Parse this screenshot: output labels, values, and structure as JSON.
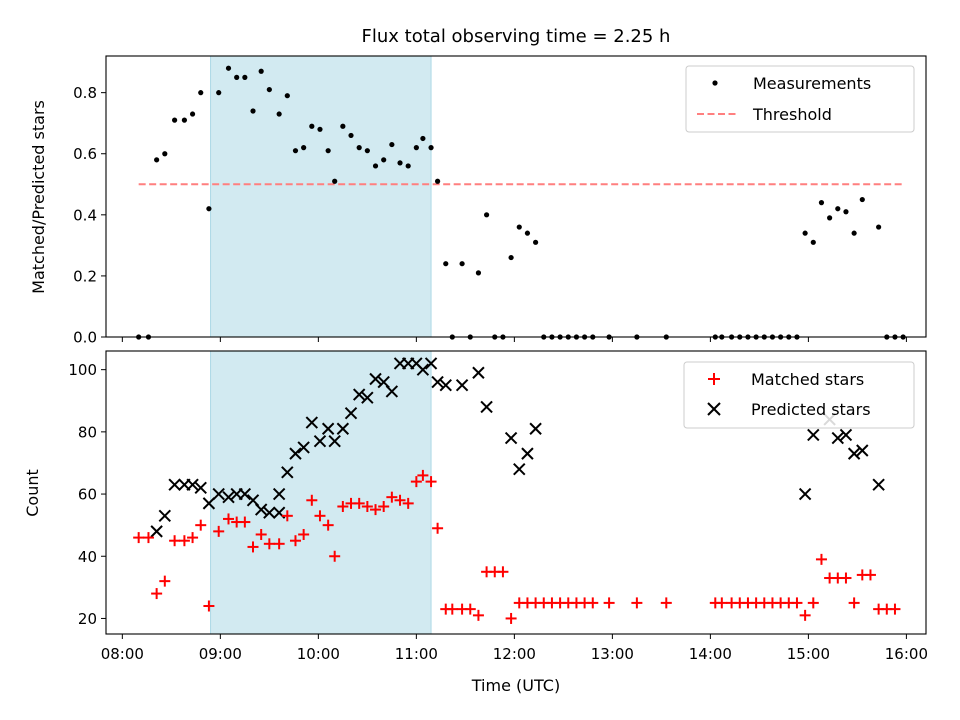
{
  "title": "Flux total observing time = 2.25 h",
  "colors": {
    "shade": "#add8e6",
    "measurements": "#000000",
    "threshold": "#ff7f7f",
    "matched": "#ff0000",
    "predicted": "#000000"
  },
  "shaded_region": {
    "start": "08:54",
    "end": "11:09"
  },
  "chart_data": [
    {
      "type": "scatter",
      "panel": "top",
      "ylabel": "Matched/Predicted stars",
      "xlim": [
        "07:50",
        "16:12"
      ],
      "ylim": [
        0,
        0.92
      ],
      "yticks": [
        0.0,
        0.2,
        0.4,
        0.6,
        0.8
      ],
      "ytick_labels": [
        "0.0",
        "0.2",
        "0.4",
        "0.6",
        "0.8"
      ],
      "legend": {
        "position": "top-right",
        "entries": [
          "Measurements",
          "Threshold"
        ]
      },
      "series": [
        {
          "name": "Measurements",
          "marker": "dot",
          "points": [
            [
              "08:10",
              0.0
            ],
            [
              "08:16",
              0.0
            ],
            [
              "08:21",
              0.58
            ],
            [
              "08:26",
              0.6
            ],
            [
              "08:32",
              0.71
            ],
            [
              "08:38",
              0.71
            ],
            [
              "08:43",
              0.73
            ],
            [
              "08:48",
              0.8
            ],
            [
              "08:53",
              0.42
            ],
            [
              "08:59",
              0.8
            ],
            [
              "09:05",
              0.88
            ],
            [
              "09:10",
              0.85
            ],
            [
              "09:15",
              0.85
            ],
            [
              "09:20",
              0.74
            ],
            [
              "09:25",
              0.87
            ],
            [
              "09:30",
              0.81
            ],
            [
              "09:36",
              0.73
            ],
            [
              "09:41",
              0.79
            ],
            [
              "09:46",
              0.61
            ],
            [
              "09:51",
              0.62
            ],
            [
              "09:56",
              0.69
            ],
            [
              "10:01",
              0.68
            ],
            [
              "10:06",
              0.61
            ],
            [
              "10:10",
              0.51
            ],
            [
              "10:15",
              0.69
            ],
            [
              "10:20",
              0.66
            ],
            [
              "10:25",
              0.62
            ],
            [
              "10:30",
              0.61
            ],
            [
              "10:35",
              0.56
            ],
            [
              "10:40",
              0.58
            ],
            [
              "10:45",
              0.63
            ],
            [
              "10:50",
              0.57
            ],
            [
              "10:55",
              0.56
            ],
            [
              "11:00",
              0.62
            ],
            [
              "11:04",
              0.65
            ],
            [
              "11:09",
              0.62
            ],
            [
              "11:13",
              0.51
            ],
            [
              "11:18",
              0.24
            ],
            [
              "11:22",
              0.0
            ],
            [
              "11:28",
              0.24
            ],
            [
              "11:33",
              0.0
            ],
            [
              "11:38",
              0.21
            ],
            [
              "11:43",
              0.4
            ],
            [
              "11:48",
              0.0
            ],
            [
              "11:53",
              0.0
            ],
            [
              "11:58",
              0.26
            ],
            [
              "12:03",
              0.36
            ],
            [
              "12:08",
              0.34
            ],
            [
              "12:13",
              0.31
            ],
            [
              "12:18",
              0.0
            ],
            [
              "12:23",
              0.0
            ],
            [
              "12:28",
              0.0
            ],
            [
              "12:33",
              0.0
            ],
            [
              "12:38",
              0.0
            ],
            [
              "12:43",
              0.0
            ],
            [
              "12:48",
              0.0
            ],
            [
              "12:58",
              0.0
            ],
            [
              "13:15",
              0.0
            ],
            [
              "13:33",
              0.0
            ],
            [
              "14:03",
              0.0
            ],
            [
              "14:07",
              0.0
            ],
            [
              "14:13",
              0.0
            ],
            [
              "14:18",
              0.0
            ],
            [
              "14:23",
              0.0
            ],
            [
              "14:28",
              0.0
            ],
            [
              "14:33",
              0.0
            ],
            [
              "14:38",
              0.0
            ],
            [
              "14:43",
              0.0
            ],
            [
              "14:48",
              0.0
            ],
            [
              "14:53",
              0.0
            ],
            [
              "14:58",
              0.34
            ],
            [
              "15:03",
              0.31
            ],
            [
              "15:08",
              0.44
            ],
            [
              "15:13",
              0.39
            ],
            [
              "15:18",
              0.42
            ],
            [
              "15:23",
              0.41
            ],
            [
              "15:28",
              0.34
            ],
            [
              "15:33",
              0.45
            ],
            [
              "15:43",
              0.36
            ],
            [
              "15:48",
              0.0
            ],
            [
              "15:53",
              0.0
            ],
            [
              "15:58",
              0.0
            ]
          ]
        },
        {
          "name": "Threshold",
          "style": "dashed",
          "x": [
            "08:10",
            "15:58"
          ],
          "y": [
            0.5,
            0.5
          ]
        }
      ]
    },
    {
      "type": "scatter",
      "panel": "bottom",
      "xlabel": "Time (UTC)",
      "ylabel": "Count",
      "xlim": [
        "07:50",
        "16:12"
      ],
      "ylim": [
        15,
        106
      ],
      "yticks": [
        20,
        40,
        60,
        80,
        100
      ],
      "ytick_labels": [
        "20",
        "40",
        "60",
        "80",
        "100"
      ],
      "xticks": [
        "08:00",
        "09:00",
        "10:00",
        "11:00",
        "12:00",
        "13:00",
        "14:00",
        "15:00",
        "16:00"
      ],
      "xtick_labels": [
        "08:00",
        "09:00",
        "10:00",
        "11:00",
        "12:00",
        "13:00",
        "14:00",
        "15:00",
        "16:00"
      ],
      "legend": {
        "position": "top-right",
        "entries": [
          "Matched stars",
          "Predicted stars"
        ]
      },
      "series": [
        {
          "name": "Matched stars",
          "marker": "plus",
          "points": [
            [
              "08:10",
              46
            ],
            [
              "08:16",
              46
            ],
            [
              "08:21",
              28
            ],
            [
              "08:26",
              32
            ],
            [
              "08:32",
              45
            ],
            [
              "08:38",
              45
            ],
            [
              "08:43",
              46
            ],
            [
              "08:48",
              50
            ],
            [
              "08:53",
              24
            ],
            [
              "08:59",
              48
            ],
            [
              "09:05",
              52
            ],
            [
              "09:10",
              51
            ],
            [
              "09:15",
              51
            ],
            [
              "09:20",
              43
            ],
            [
              "09:25",
              47
            ],
            [
              "09:30",
              44
            ],
            [
              "09:36",
              44
            ],
            [
              "09:41",
              53
            ],
            [
              "09:46",
              45
            ],
            [
              "09:51",
              47
            ],
            [
              "09:56",
              58
            ],
            [
              "10:01",
              53
            ],
            [
              "10:06",
              50
            ],
            [
              "10:10",
              40
            ],
            [
              "10:15",
              56
            ],
            [
              "10:20",
              57
            ],
            [
              "10:25",
              57
            ],
            [
              "10:30",
              56
            ],
            [
              "10:35",
              55
            ],
            [
              "10:40",
              56
            ],
            [
              "10:45",
              59
            ],
            [
              "10:50",
              58
            ],
            [
              "10:55",
              57
            ],
            [
              "11:00",
              64
            ],
            [
              "11:04",
              66
            ],
            [
              "11:09",
              64
            ],
            [
              "11:13",
              49
            ],
            [
              "11:18",
              23
            ],
            [
              "11:22",
              23
            ],
            [
              "11:28",
              23
            ],
            [
              "11:33",
              23
            ],
            [
              "11:38",
              21
            ],
            [
              "11:43",
              35
            ],
            [
              "11:48",
              35
            ],
            [
              "11:53",
              35
            ],
            [
              "11:58",
              20
            ],
            [
              "12:03",
              25
            ],
            [
              "12:08",
              25
            ],
            [
              "12:13",
              25
            ],
            [
              "12:18",
              25
            ],
            [
              "12:23",
              25
            ],
            [
              "12:28",
              25
            ],
            [
              "12:33",
              25
            ],
            [
              "12:38",
              25
            ],
            [
              "12:43",
              25
            ],
            [
              "12:48",
              25
            ],
            [
              "12:58",
              25
            ],
            [
              "13:15",
              25
            ],
            [
              "13:33",
              25
            ],
            [
              "14:03",
              25
            ],
            [
              "14:07",
              25
            ],
            [
              "14:13",
              25
            ],
            [
              "14:18",
              25
            ],
            [
              "14:23",
              25
            ],
            [
              "14:28",
              25
            ],
            [
              "14:33",
              25
            ],
            [
              "14:38",
              25
            ],
            [
              "14:43",
              25
            ],
            [
              "14:48",
              25
            ],
            [
              "14:53",
              25
            ],
            [
              "14:58",
              21
            ],
            [
              "15:03",
              25
            ],
            [
              "15:08",
              39
            ],
            [
              "15:13",
              33
            ],
            [
              "15:18",
              33
            ],
            [
              "15:23",
              33
            ],
            [
              "15:28",
              25
            ],
            [
              "15:33",
              34
            ],
            [
              "15:38",
              34
            ],
            [
              "15:43",
              23
            ],
            [
              "15:48",
              23
            ],
            [
              "15:53",
              23
            ]
          ]
        },
        {
          "name": "Predicted stars",
          "marker": "x",
          "points": [
            [
              "08:21",
              48
            ],
            [
              "08:26",
              53
            ],
            [
              "08:32",
              63
            ],
            [
              "08:38",
              63
            ],
            [
              "08:43",
              63
            ],
            [
              "08:48",
              62
            ],
            [
              "08:53",
              57
            ],
            [
              "08:59",
              60
            ],
            [
              "09:05",
              59
            ],
            [
              "09:10",
              60
            ],
            [
              "09:15",
              60
            ],
            [
              "09:20",
              58
            ],
            [
              "09:25",
              55
            ],
            [
              "09:30",
              54
            ],
            [
              "09:36",
              54
            ],
            [
              "09:36",
              60
            ],
            [
              "09:41",
              67
            ],
            [
              "09:46",
              73
            ],
            [
              "09:51",
              75
            ],
            [
              "09:56",
              83
            ],
            [
              "10:01",
              77
            ],
            [
              "10:06",
              81
            ],
            [
              "10:10",
              77
            ],
            [
              "10:15",
              81
            ],
            [
              "10:20",
              86
            ],
            [
              "10:25",
              92
            ],
            [
              "10:30",
              91
            ],
            [
              "10:35",
              97
            ],
            [
              "10:40",
              96
            ],
            [
              "10:45",
              93
            ],
            [
              "10:50",
              102
            ],
            [
              "10:55",
              102
            ],
            [
              "11:00",
              102
            ],
            [
              "11:04",
              100
            ],
            [
              "11:09",
              102
            ],
            [
              "11:13",
              96
            ],
            [
              "11:18",
              95
            ],
            [
              "11:28",
              95
            ],
            [
              "11:38",
              99
            ],
            [
              "11:43",
              88
            ],
            [
              "11:58",
              78
            ],
            [
              "12:03",
              68
            ],
            [
              "12:08",
              73
            ],
            [
              "12:13",
              81
            ],
            [
              "14:58",
              60
            ],
            [
              "15:03",
              79
            ],
            [
              "15:13",
              84
            ],
            [
              "15:18",
              78
            ],
            [
              "15:23",
              79
            ],
            [
              "15:28",
              73
            ],
            [
              "15:33",
              74
            ],
            [
              "15:43",
              63
            ]
          ]
        }
      ]
    }
  ]
}
